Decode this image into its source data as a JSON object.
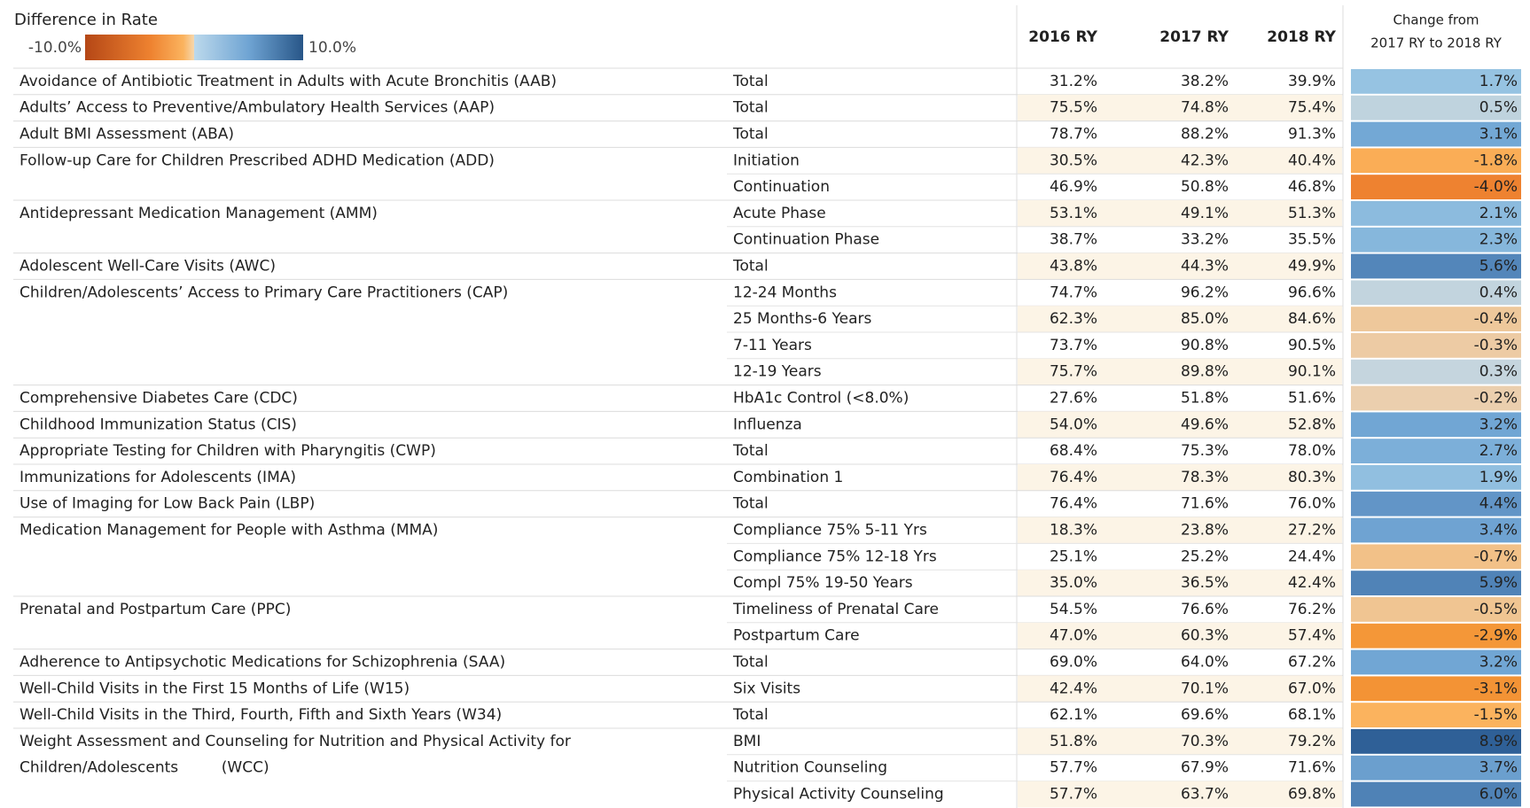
{
  "legend": {
    "title": "Difference in Rate",
    "min": {
      "value": -10,
      "label": "-10.0%"
    },
    "max": {
      "value": 10,
      "label": "10.0%"
    }
  },
  "table": {
    "columns": [
      "2016 RY",
      "2017 RY",
      "2018 RY"
    ],
    "change_header": [
      "Change from",
      "2017 RY to 2018 RY"
    ],
    "measures": [
      {
        "name": "Avoidance of Antibiotic Treatment in Adults with Acute Bronchitis (AAB)",
        "rows": [
          {
            "submeasure": "Total",
            "rates": [
              "31.2%",
              "38.2%",
              "39.9%"
            ],
            "change": {
              "value": 1.7,
              "label": "1.7%"
            }
          }
        ]
      },
      {
        "name": "Adults’ Access to Preventive/Ambulatory Health Services (AAP)",
        "rows": [
          {
            "submeasure": "Total",
            "rates": [
              "75.5%",
              "74.8%",
              "75.4%"
            ],
            "change": {
              "value": 0.5,
              "label": "0.5%"
            }
          }
        ]
      },
      {
        "name": "Adult BMI Assessment (ABA)",
        "rows": [
          {
            "submeasure": "Total",
            "rates": [
              "78.7%",
              "88.2%",
              "91.3%"
            ],
            "change": {
              "value": 3.1,
              "label": "3.1%"
            }
          }
        ]
      },
      {
        "name": "Follow-up Care for Children Prescribed ADHD Medication (ADD)",
        "rows": [
          {
            "submeasure": "Initiation",
            "rates": [
              "30.5%",
              "42.3%",
              "40.4%"
            ],
            "change": {
              "value": -1.8,
              "label": "-1.8%"
            }
          },
          {
            "submeasure": "Continuation",
            "rates": [
              "46.9%",
              "50.8%",
              "46.8%"
            ],
            "change": {
              "value": -4.0,
              "label": "-4.0%"
            }
          }
        ]
      },
      {
        "name": "Antidepressant Medication Management (AMM)",
        "rows": [
          {
            "submeasure": "Acute Phase",
            "rates": [
              "53.1%",
              "49.1%",
              "51.3%"
            ],
            "change": {
              "value": 2.1,
              "label": "2.1%"
            }
          },
          {
            "submeasure": "Continuation Phase",
            "rates": [
              "38.7%",
              "33.2%",
              "35.5%"
            ],
            "change": {
              "value": 2.3,
              "label": "2.3%"
            }
          }
        ]
      },
      {
        "name": "Adolescent Well-Care Visits (AWC)",
        "rows": [
          {
            "submeasure": "Total",
            "rates": [
              "43.8%",
              "44.3%",
              "49.9%"
            ],
            "change": {
              "value": 5.6,
              "label": "5.6%"
            }
          }
        ]
      },
      {
        "name": "Children/Adolescents’ Access to Primary Care Practitioners (CAP)",
        "rows": [
          {
            "submeasure": "12-24 Months",
            "rates": [
              "74.7%",
              "96.2%",
              "96.6%"
            ],
            "change": {
              "value": 0.4,
              "label": "0.4%"
            }
          },
          {
            "submeasure": "25 Months-6 Years",
            "rates": [
              "62.3%",
              "85.0%",
              "84.6%"
            ],
            "change": {
              "value": -0.4,
              "label": "-0.4%"
            }
          },
          {
            "submeasure": "7-11 Years",
            "rates": [
              "73.7%",
              "90.8%",
              "90.5%"
            ],
            "change": {
              "value": -0.3,
              "label": "-0.3%"
            }
          },
          {
            "submeasure": "12-19 Years",
            "rates": [
              "75.7%",
              "89.8%",
              "90.1%"
            ],
            "change": {
              "value": 0.3,
              "label": "0.3%"
            }
          }
        ]
      },
      {
        "name": "Comprehensive Diabetes Care (CDC)",
        "rows": [
          {
            "submeasure": "HbA1c Control (<8.0%)",
            "rates": [
              "27.6%",
              "51.8%",
              "51.6%"
            ],
            "change": {
              "value": -0.2,
              "label": "-0.2%"
            }
          }
        ]
      },
      {
        "name": "Childhood Immunization Status (CIS)",
        "rows": [
          {
            "submeasure": "Influenza",
            "rates": [
              "54.0%",
              "49.6%",
              "52.8%"
            ],
            "change": {
              "value": 3.2,
              "label": "3.2%"
            }
          }
        ]
      },
      {
        "name": "Appropriate Testing for Children with Pharyngitis (CWP)",
        "rows": [
          {
            "submeasure": "Total",
            "rates": [
              "68.4%",
              "75.3%",
              "78.0%"
            ],
            "change": {
              "value": 2.7,
              "label": "2.7%"
            }
          }
        ]
      },
      {
        "name": "Immunizations for Adolescents (IMA)",
        "rows": [
          {
            "submeasure": "Combination 1",
            "rates": [
              "76.4%",
              "78.3%",
              "80.3%"
            ],
            "change": {
              "value": 1.9,
              "label": "1.9%"
            }
          }
        ]
      },
      {
        "name": "Use of Imaging for Low Back Pain (LBP)",
        "rows": [
          {
            "submeasure": "Total",
            "rates": [
              "76.4%",
              "71.6%",
              "76.0%"
            ],
            "change": {
              "value": 4.4,
              "label": "4.4%"
            }
          }
        ]
      },
      {
        "name": "Medication Management for People with Asthma (MMA)",
        "rows": [
          {
            "submeasure": "Compliance 75% 5-11 Yrs",
            "rates": [
              "18.3%",
              "23.8%",
              "27.2%"
            ],
            "change": {
              "value": 3.4,
              "label": "3.4%"
            }
          },
          {
            "submeasure": "Compliance 75% 12-18 Yrs",
            "rates": [
              "25.1%",
              "25.2%",
              "24.4%"
            ],
            "change": {
              "value": -0.7,
              "label": "-0.7%"
            }
          },
          {
            "submeasure": "Compl 75% 19-50 Years",
            "rates": [
              "35.0%",
              "36.5%",
              "42.4%"
            ],
            "change": {
              "value": 5.9,
              "label": "5.9%"
            }
          }
        ]
      },
      {
        "name": "Prenatal and Postpartum Care (PPC)",
        "rows": [
          {
            "submeasure": "Timeliness of Prenatal Care",
            "rates": [
              "54.5%",
              "76.6%",
              "76.2%"
            ],
            "change": {
              "value": -0.5,
              "label": "-0.5%"
            }
          },
          {
            "submeasure": "Postpartum Care",
            "rates": [
              "47.0%",
              "60.3%",
              "57.4%"
            ],
            "change": {
              "value": -2.9,
              "label": "-2.9%"
            }
          }
        ]
      },
      {
        "name": "Adherence to Antipsychotic Medications for Schizophrenia (SAA)",
        "rows": [
          {
            "submeasure": "Total",
            "rates": [
              "69.0%",
              "64.0%",
              "67.2%"
            ],
            "change": {
              "value": 3.2,
              "label": "3.2%"
            }
          }
        ]
      },
      {
        "name": "Well-Child Visits in the First 15 Months of Life (W15)",
        "rows": [
          {
            "submeasure": "Six Visits",
            "rates": [
              "42.4%",
              "70.1%",
              "67.0%"
            ],
            "change": {
              "value": -3.1,
              "label": "-3.1%"
            }
          }
        ]
      },
      {
        "name": "Well-Child Visits in the Third, Fourth, Fifth and Sixth Years (W34)",
        "rows": [
          {
            "submeasure": "Total",
            "rates": [
              "62.1%",
              "69.6%",
              "68.1%"
            ],
            "change": {
              "value": -1.5,
              "label": "-1.5%"
            }
          }
        ]
      },
      {
        "name": [
          "Weight Assessment and Counseling for Nutrition and Physical Activity for",
          "Children/Adolescents         (WCC)"
        ],
        "rows": [
          {
            "submeasure": "BMI",
            "rates": [
              "51.8%",
              "70.3%",
              "79.2%"
            ],
            "change": {
              "value": 8.9,
              "label": "8.9%"
            }
          },
          {
            "submeasure": "Nutrition Counseling",
            "rates": [
              "57.7%",
              "67.9%",
              "71.6%"
            ],
            "change": {
              "value": 3.7,
              "label": "3.7%"
            }
          },
          {
            "submeasure": "Physical Activity Counseling",
            "rates": [
              "57.7%",
              "63.7%",
              "69.8%"
            ],
            "change": {
              "value": 6.0,
              "label": "6.0%"
            }
          }
        ]
      }
    ]
  }
}
